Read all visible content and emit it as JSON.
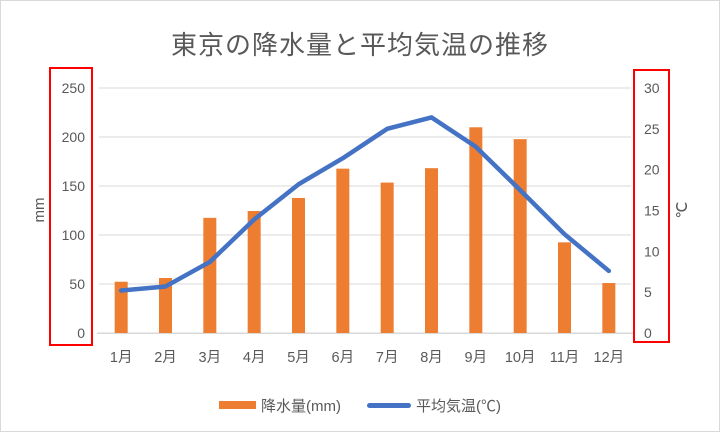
{
  "chart_data": {
    "type": "bar+line",
    "title": "東京の降水量と平均気温の推移",
    "categories": [
      "1月",
      "2月",
      "3月",
      "4月",
      "5月",
      "6月",
      "7月",
      "8月",
      "9月",
      "10月",
      "11月",
      "12月"
    ],
    "series": [
      {
        "name": "降水量(mm)",
        "type": "bar",
        "axis": "left",
        "color": "#ED7D31",
        "values": [
          52.3,
          56.1,
          117.5,
          124.5,
          137.8,
          167.7,
          153.5,
          168.2,
          209.9,
          197.8,
          92.5,
          51.0
        ]
      },
      {
        "name": "平均気温(℃)",
        "type": "line",
        "axis": "right",
        "color": "#4472C4",
        "values": [
          5.2,
          5.7,
          8.7,
          13.9,
          18.2,
          21.4,
          25.0,
          26.4,
          22.8,
          17.5,
          12.1,
          7.6
        ]
      }
    ],
    "left_axis": {
      "title": "mm",
      "ticks": [
        0,
        50,
        100,
        150,
        200,
        250
      ],
      "min": 0,
      "max": 250
    },
    "right_axis": {
      "title": "℃",
      "ticks": [
        0,
        5,
        10,
        15,
        20,
        25,
        30
      ],
      "min": 0,
      "max": 30
    },
    "grid": true,
    "legend_position": "bottom",
    "annotations": [
      {
        "shape": "rect",
        "color": "#FF0000",
        "target": "left-axis-labels"
      },
      {
        "shape": "rect",
        "color": "#FF0000",
        "target": "right-axis-labels"
      }
    ]
  },
  "colors": {
    "bar": "#ED7D31",
    "line": "#4472C4",
    "text": "#595959",
    "grid": "#D9D9D9",
    "annotation": "#FF0000",
    "background": "#FFFFFF"
  }
}
